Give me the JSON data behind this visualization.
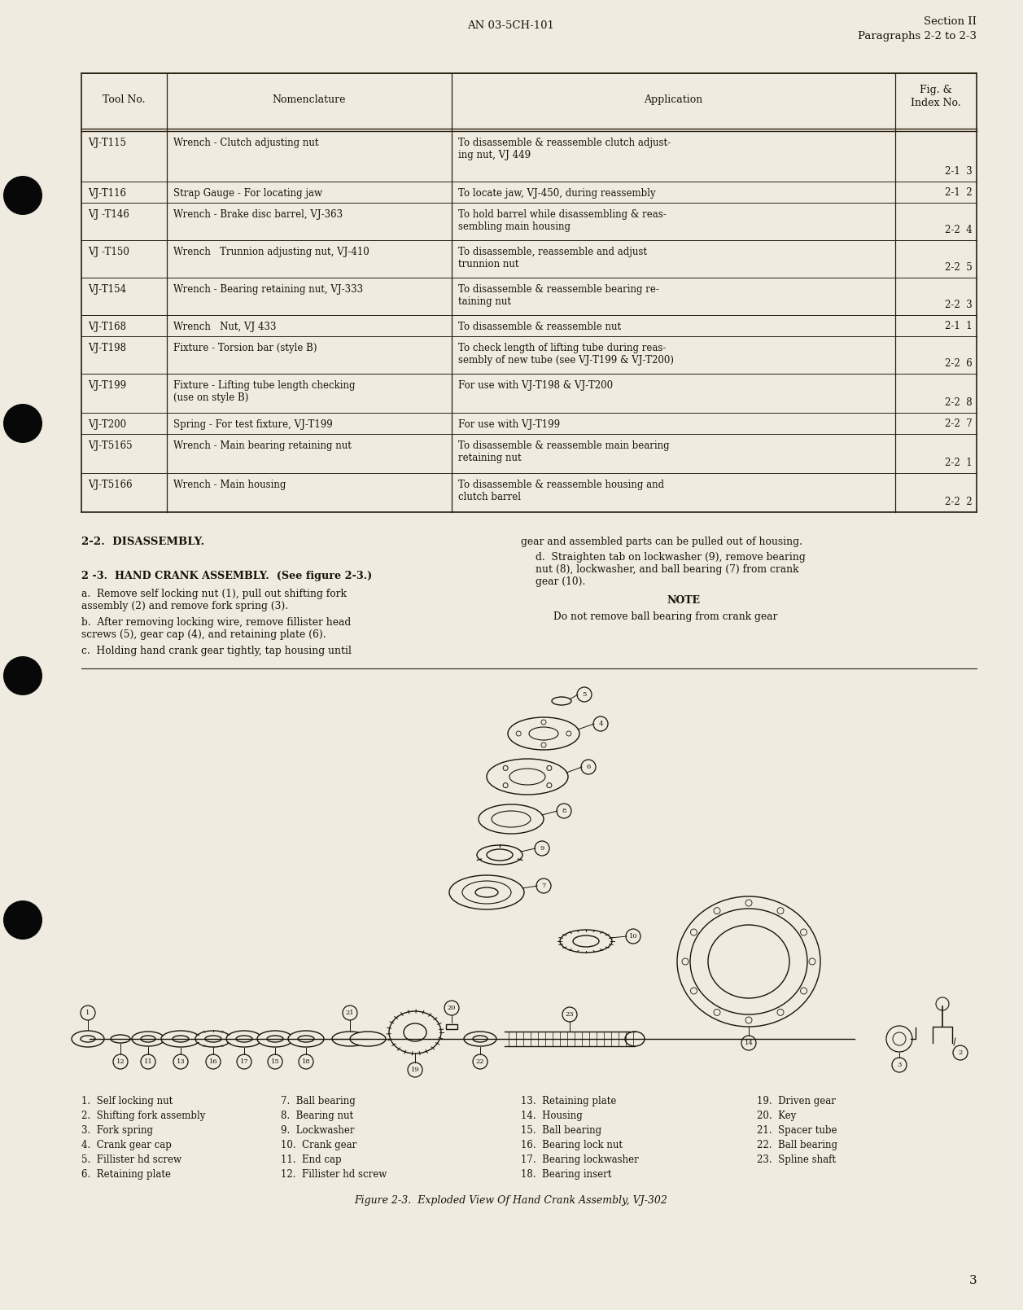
{
  "page_bg_color": "#f0ebe0",
  "header_left": "AN 03-5CH-101",
  "header_right_line1": "Section II",
  "header_right_line2": "Paragraphs 2-2 to 2-3",
  "table_headers": [
    "Tool No.",
    "Nomenclature",
    "Application",
    "Fig. &",
    "Index No."
  ],
  "table_rows": [
    [
      "VJ-T115",
      "Wrench - Clutch adjusting nut",
      "To disassemble & reassemble clutch adjust-\ning nut, VJ 449",
      "2-1  3"
    ],
    [
      "VJ-T116",
      "Strap Gauge - For locating jaw",
      "To locate jaw, VJ-450, during reassembly",
      "2-1  2"
    ],
    [
      "VJ -T146",
      "Wrench - Brake disc barrel, VJ-363",
      "To hold barrel while disassembling & reas-\nsembling main housing",
      "2-2  4"
    ],
    [
      "VJ -T150",
      "Wrench   Trunnion adjusting nut, VJ-410",
      "To disassemble, reassemble and adjust\ntrunnion nut",
      "2-2  5"
    ],
    [
      "VJ-T154",
      "Wrench - Bearing retaining nut, VJ-333",
      "To disassemble & reassemble bearing re-\ntaining nut",
      "2-2  3"
    ],
    [
      "VJ-T168",
      "Wrench   Nut, VJ 433",
      "To disassemble & reassemble nut",
      "2-1  1"
    ],
    [
      "VJ-T198",
      "Fixture - Torsion bar (style B)",
      "To check length of lifting tube during reas-\nsembly of new tube (see VJ-T199 & VJ-T200)",
      "2-2  6"
    ],
    [
      "VJ-T199",
      "Fixture - Lifting tube length checking\n(use on style B)",
      "For use with VJ-T198 & VJ-T200",
      "2-2  8"
    ],
    [
      "VJ-T200",
      "Spring - For test fixture, VJ-T199",
      "For use with VJ-T199",
      "2-2  7"
    ],
    [
      "VJ-T5165",
      "Wrench - Main bearing retaining nut",
      "To disassemble & reassemble main bearing\nretaining nut",
      "2-2  1"
    ],
    [
      "VJ-T5166",
      "Wrench - Main housing",
      "To disassemble & reassemble housing and\nclutch barrel",
      "2-2  2"
    ]
  ],
  "section_title": "2-2.  DISASSEMBLY.",
  "para_title": "2 -3.  HAND CRANK ASSEMBLY.  (See figure 2-3.)",
  "para_a": "a.  Remove self locking nut (1), pull out shifting fork\nassembly (2) and remove fork spring (3).",
  "para_b": "b.  After removing locking wire, remove fillister head\nscrews (5), gear cap (4), and retaining plate (6).",
  "para_c": "c.  Holding hand crank gear tightly, tap housing until",
  "para_right1": "gear and assembled parts can be pulled out of housing.",
  "para_d_indent": "d.  Straighten tab on lockwasher (9), remove bearing\nnut (8), lockwasher, and ball bearing (7) from crank\ngear (10).",
  "note_label": "NOTE",
  "note_text": "Do not remove ball bearing from crank gear",
  "figure_caption": "Figure 2-3.  Exploded View Of Hand Crank Assembly, VJ-302",
  "parts_list": [
    [
      "1.  Self locking nut",
      "7.  Ball bearing",
      "13.  Retaining plate",
      "19.  Driven gear"
    ],
    [
      "2.  Shifting fork assembly",
      "8.  Bearing nut",
      "14.  Housing",
      "20.  Key"
    ],
    [
      "3.  Fork spring",
      "9.  Lockwasher",
      "15.  Ball bearing",
      "21.  Spacer tube"
    ],
    [
      "4.  Crank gear cap",
      "10.  Crank gear",
      "16.  Bearing lock nut",
      "22.  Ball bearing"
    ],
    [
      "5.  Fillister hd screw",
      "11.  End cap",
      "17.  Bearing lockwasher",
      "23.  Spline shaft"
    ],
    [
      "6.  Retaining plate",
      "12.  Fillister hd screw",
      "18.  Bearing insert",
      ""
    ]
  ],
  "page_number": "3",
  "font_color": "#1a1208",
  "table_line_color": "#2a2010"
}
